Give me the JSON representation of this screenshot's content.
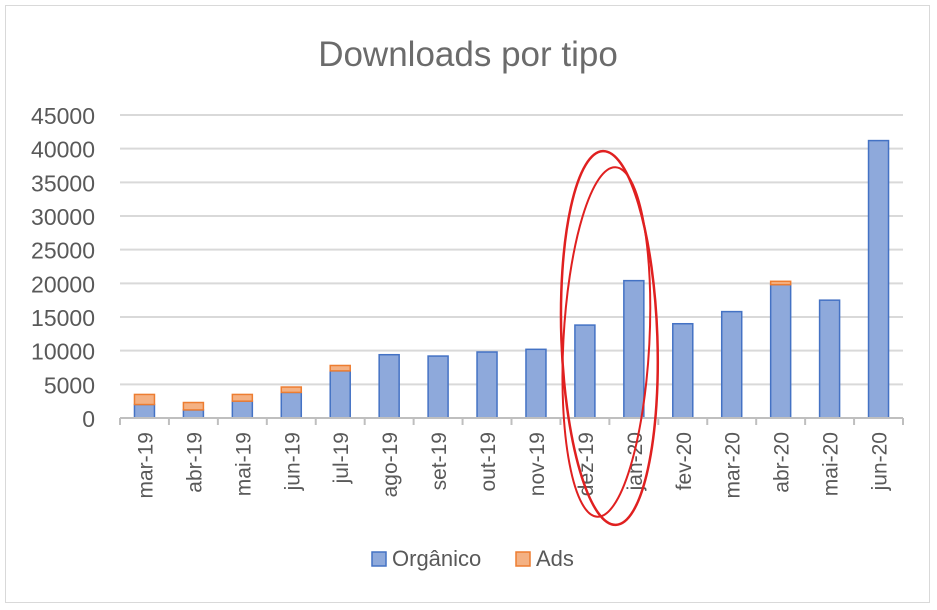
{
  "chart_data": {
    "type": "bar",
    "stacked": true,
    "title": "Downloads por tipo",
    "xlabel": "",
    "ylabel": "",
    "ylim": [
      0,
      45000
    ],
    "yticks": [
      0,
      5000,
      10000,
      15000,
      20000,
      25000,
      30000,
      35000,
      40000,
      45000
    ],
    "categories": [
      "mar-19",
      "abr-19",
      "mai-19",
      "jun-19",
      "jul-19",
      "ago-19",
      "set-19",
      "out-19",
      "nov-19",
      "dez-19",
      "jan-20",
      "fev-20",
      "mar-20",
      "abr-20",
      "mai-20",
      "jun-20"
    ],
    "series": [
      {
        "name": "Orgânico",
        "color": "#8ea9db",
        "values": [
          2000,
          1200,
          2500,
          3800,
          7000,
          9400,
          9200,
          9800,
          10200,
          13800,
          20400,
          14000,
          15800,
          19800,
          17500,
          41200
        ]
      },
      {
        "name": "Ads",
        "color": "#f4b183",
        "values": [
          1500,
          1100,
          1000,
          800,
          800,
          0,
          0,
          0,
          0,
          0,
          0,
          0,
          0,
          500,
          0,
          0
        ]
      }
    ],
    "grid": true,
    "legend": "bottom",
    "annotation": {
      "type": "hand-drawn ellipse",
      "color": "#e02020",
      "around": [
        "dez-19",
        "jan-20"
      ]
    }
  }
}
